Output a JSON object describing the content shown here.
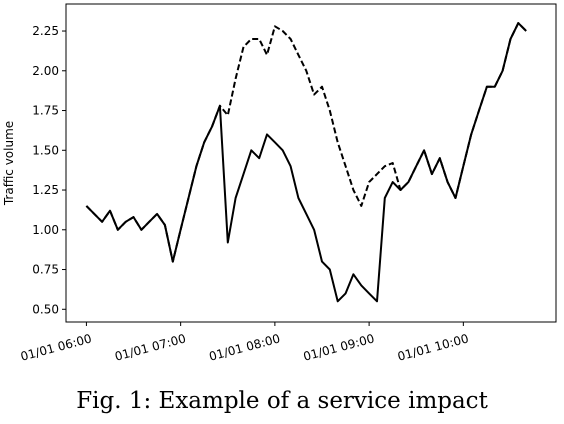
{
  "caption": "Fig. 1: Example of a service impact",
  "chart_data": {
    "type": "line",
    "title": "",
    "xlabel": "",
    "ylabel": "Traffic volume",
    "x_ticks": [
      "01/01 06:00",
      "01/01 07:00",
      "01/01 08:00",
      "01/01 09:00",
      "01/01 10:00"
    ],
    "y_ticks": [
      "0.50",
      "0.75",
      "1.00",
      "1.25",
      "1.50",
      "1.75",
      "2.00",
      "2.25"
    ],
    "xlim": [
      "05:47",
      "10:59"
    ],
    "ylim": [
      0.42,
      2.42
    ],
    "grid": false,
    "x": [
      "06:00",
      "06:05",
      "06:10",
      "06:15",
      "06:20",
      "06:25",
      "06:30",
      "06:35",
      "06:40",
      "06:45",
      "06:50",
      "06:55",
      "07:00",
      "07:05",
      "07:10",
      "07:15",
      "07:20",
      "07:25",
      "07:30",
      "07:35",
      "07:40",
      "07:45",
      "07:50",
      "07:55",
      "08:00",
      "08:05",
      "08:10",
      "08:15",
      "08:20",
      "08:25",
      "08:30",
      "08:35",
      "08:40",
      "08:45",
      "08:50",
      "08:55",
      "09:00",
      "09:05",
      "09:10",
      "09:15",
      "09:20",
      "09:25",
      "09:30",
      "09:35",
      "09:40",
      "09:45",
      "09:50",
      "09:55",
      "10:00",
      "10:05",
      "10:10",
      "10:15",
      "10:20",
      "10:25",
      "10:30",
      "10:35",
      "10:40"
    ],
    "series": [
      {
        "style": "dashed",
        "color": "#000000",
        "values": [
          1.15,
          1.1,
          1.05,
          1.12,
          1.0,
          1.05,
          1.08,
          1.0,
          1.05,
          1.1,
          1.03,
          0.8,
          1.0,
          1.2,
          1.4,
          1.55,
          1.65,
          1.78,
          1.72,
          1.95,
          2.15,
          2.2,
          2.2,
          2.1,
          2.28,
          2.25,
          2.2,
          2.1,
          2.0,
          1.85,
          1.9,
          1.75,
          1.55,
          1.4,
          1.25,
          1.15,
          1.3,
          1.35,
          1.4,
          1.42,
          1.25,
          1.3,
          1.4,
          1.5,
          1.35,
          1.45,
          1.3,
          1.2,
          1.4,
          1.6,
          1.75,
          1.9,
          1.9,
          2.0,
          2.2,
          2.3,
          2.25
        ]
      },
      {
        "style": "solid",
        "color": "#000000",
        "values": [
          1.15,
          1.1,
          1.05,
          1.12,
          1.0,
          1.05,
          1.08,
          1.0,
          1.05,
          1.1,
          1.03,
          0.8,
          1.0,
          1.2,
          1.4,
          1.55,
          1.65,
          1.78,
          0.92,
          1.2,
          1.35,
          1.5,
          1.45,
          1.6,
          1.55,
          1.5,
          1.4,
          1.2,
          1.1,
          1.0,
          0.8,
          0.75,
          0.55,
          0.6,
          0.72,
          0.65,
          0.6,
          0.55,
          1.2,
          1.3,
          1.25,
          1.3,
          1.4,
          1.5,
          1.35,
          1.45,
          1.3,
          1.2,
          1.4,
          1.6,
          1.75,
          1.9,
          1.9,
          2.0,
          2.2,
          2.3,
          2.25
        ]
      }
    ]
  }
}
